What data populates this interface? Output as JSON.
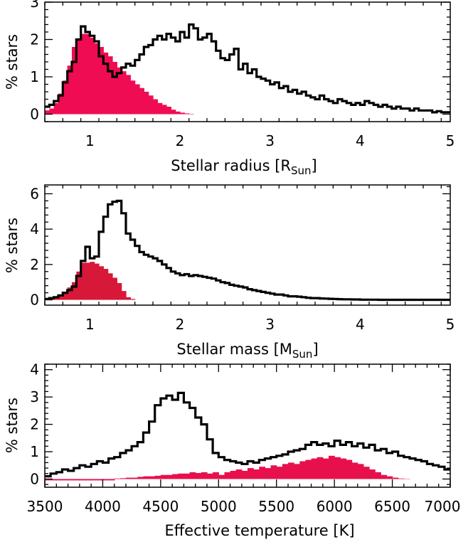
{
  "chart_data": [
    {
      "type": "bar",
      "xlabel": "Stellar radius [R",
      "xlabel_sub": "Sun",
      "xlabel_close": "]",
      "ylabel": "% stars",
      "xlim": [
        0.5,
        5
      ],
      "ylim": [
        -0.2,
        3
      ],
      "xticks": [
        "1",
        "2",
        "3",
        "4",
        "5"
      ],
      "xtick_values": [
        1,
        2,
        3,
        4,
        5
      ],
      "yticks": [
        "0",
        "1",
        "2",
        "3"
      ],
      "ytick_values": [
        0,
        1,
        2,
        3
      ],
      "bin_start": 0.5,
      "bin_width": 0.05,
      "series": [
        {
          "style": "filled",
          "color": "#f00c52",
          "values": [
            0.1,
            0.15,
            0.3,
            0.55,
            0.9,
            1.3,
            1.8,
            2.0,
            2.15,
            2.15,
            2.05,
            1.9,
            1.8,
            1.65,
            1.55,
            1.4,
            1.25,
            1.15,
            1.05,
            0.9,
            0.8,
            0.7,
            0.6,
            0.5,
            0.4,
            0.3,
            0.25,
            0.2,
            0.12,
            0.07,
            0.04,
            0.02,
            0.01,
            0,
            0,
            0,
            0,
            0,
            0,
            0,
            0,
            0,
            0,
            0,
            0,
            0,
            0,
            0,
            0,
            0,
            0,
            0,
            0,
            0,
            0,
            0,
            0,
            0,
            0,
            0,
            0,
            0,
            0,
            0,
            0,
            0,
            0,
            0,
            0,
            0,
            0,
            0,
            0,
            0,
            0,
            0,
            0,
            0,
            0,
            0,
            0,
            0,
            0,
            0,
            0,
            0,
            0,
            0,
            0,
            0
          ]
        },
        {
          "style": "step",
          "color": "#000000",
          "values": [
            0.2,
            0.25,
            0.35,
            0.5,
            0.85,
            1.15,
            1.4,
            2.0,
            2.35,
            2.2,
            2.1,
            1.95,
            1.55,
            1.35,
            1.15,
            1.0,
            1.1,
            1.25,
            1.35,
            1.3,
            1.45,
            1.6,
            1.8,
            1.85,
            2.0,
            2.1,
            2.0,
            2.15,
            2.05,
            1.95,
            2.2,
            2.05,
            2.4,
            2.3,
            2.0,
            2.05,
            2.15,
            1.95,
            1.7,
            1.5,
            1.45,
            1.6,
            1.75,
            1.2,
            1.35,
            1.1,
            1.2,
            1.0,
            0.95,
            0.9,
            0.8,
            0.85,
            0.7,
            0.75,
            0.6,
            0.65,
            0.55,
            0.6,
            0.5,
            0.45,
            0.4,
            0.5,
            0.4,
            0.35,
            0.3,
            0.4,
            0.35,
            0.3,
            0.25,
            0.3,
            0.25,
            0.35,
            0.3,
            0.25,
            0.2,
            0.25,
            0.2,
            0.15,
            0.2,
            0.15,
            0.15,
            0.1,
            0.15,
            0.1,
            0.1,
            0.1,
            0.05,
            0.08,
            0.05,
            0.05
          ]
        }
      ]
    },
    {
      "type": "bar",
      "xlabel": "Stellar mass [M",
      "xlabel_sub": "Sun",
      "xlabel_close": "]",
      "ylabel": "% stars",
      "xlim": [
        0.5,
        5
      ],
      "ylim": [
        -0.3,
        6.5
      ],
      "xticks": [
        "1",
        "2",
        "3",
        "4",
        "5"
      ],
      "xtick_values": [
        1,
        2,
        3,
        4,
        5
      ],
      "yticks": [
        "0",
        "2",
        "4",
        "6"
      ],
      "ytick_values": [
        0,
        2,
        4,
        6
      ],
      "bin_start": 0.5,
      "bin_width": 0.05,
      "series": [
        {
          "style": "filled",
          "color": "#d81838",
          "values": [
            0.05,
            0.1,
            0.15,
            0.3,
            0.45,
            0.7,
            1.0,
            1.6,
            2.1,
            2.1,
            2.15,
            2.05,
            1.9,
            1.75,
            1.5,
            1.25,
            0.95,
            0.5,
            0.15,
            0.05,
            0,
            0,
            0,
            0,
            0,
            0,
            0,
            0,
            0,
            0,
            0,
            0,
            0,
            0,
            0,
            0,
            0,
            0,
            0,
            0,
            0,
            0,
            0,
            0,
            0,
            0,
            0,
            0,
            0,
            0,
            0,
            0,
            0,
            0,
            0,
            0,
            0,
            0,
            0,
            0,
            0,
            0,
            0,
            0,
            0,
            0,
            0,
            0,
            0,
            0,
            0,
            0,
            0,
            0,
            0,
            0,
            0,
            0,
            0,
            0,
            0,
            0,
            0,
            0,
            0,
            0,
            0,
            0,
            0,
            0
          ]
        },
        {
          "style": "step",
          "color": "#000000",
          "values": [
            0.05,
            0.1,
            0.15,
            0.25,
            0.4,
            0.55,
            0.75,
            1.35,
            2.2,
            3.0,
            2.35,
            2.45,
            3.85,
            4.7,
            5.4,
            5.55,
            5.6,
            4.9,
            3.75,
            3.4,
            3.05,
            2.7,
            2.55,
            2.45,
            2.35,
            2.2,
            2.0,
            1.8,
            1.6,
            1.5,
            1.4,
            1.45,
            1.35,
            1.4,
            1.35,
            1.3,
            1.25,
            1.2,
            1.1,
            1.0,
            0.95,
            0.85,
            0.8,
            0.75,
            0.7,
            0.6,
            0.55,
            0.5,
            0.45,
            0.4,
            0.35,
            0.3,
            0.3,
            0.25,
            0.2,
            0.2,
            0.18,
            0.15,
            0.12,
            0.1,
            0.1,
            0.08,
            0.07,
            0.06,
            0.05,
            0.04,
            0.03,
            0.03,
            0.02,
            0.02,
            0.01,
            0.01,
            0.01,
            0.01,
            0,
            0,
            0,
            0,
            0,
            0,
            0,
            0,
            0,
            0,
            0,
            0,
            0,
            0,
            0,
            0
          ]
        }
      ]
    },
    {
      "type": "bar",
      "xlabel": "Effective temperature [K]",
      "xlabel_sub": "",
      "xlabel_close": "",
      "ylabel": "% stars",
      "xlim": [
        3500,
        7000
      ],
      "ylim": [
        -0.3,
        4.2
      ],
      "xticks": [
        "3500",
        "4000",
        "4500",
        "5000",
        "5500",
        "6000",
        "6500",
        "7000"
      ],
      "xtick_values": [
        3500,
        4000,
        4500,
        5000,
        5500,
        6000,
        6500,
        7000
      ],
      "yticks": [
        "0",
        "1",
        "2",
        "3",
        "4"
      ],
      "ytick_values": [
        0,
        1,
        2,
        3,
        4
      ],
      "bin_start": 3500,
      "bin_width": 50,
      "series": [
        {
          "style": "filled",
          "color": "#e8104c",
          "values": [
            -0.05,
            -0.05,
            -0.05,
            -0.05,
            -0.05,
            -0.05,
            -0.05,
            -0.05,
            -0.05,
            -0.05,
            -0.05,
            -0.05,
            0.02,
            0.03,
            0.05,
            0.05,
            0.08,
            0.1,
            0.1,
            0.12,
            0.15,
            0.15,
            0.18,
            0.2,
            0.2,
            0.25,
            0.22,
            0.25,
            0.2,
            0.25,
            0.15,
            0.25,
            0.3,
            0.35,
            0.3,
            0.4,
            0.35,
            0.45,
            0.4,
            0.5,
            0.45,
            0.55,
            0.6,
            0.55,
            0.65,
            0.7,
            0.75,
            0.8,
            0.75,
            0.85,
            0.8,
            0.75,
            0.7,
            0.6,
            0.55,
            0.45,
            0.35,
            0.25,
            0.15,
            0.1,
            0.05,
            0.02,
            0.01,
            0,
            0,
            0,
            0,
            0,
            0,
            0
          ]
        },
        {
          "style": "step",
          "color": "#000000",
          "values": [
            0.1,
            0.2,
            0.25,
            0.35,
            0.3,
            0.4,
            0.5,
            0.45,
            0.55,
            0.65,
            0.6,
            0.75,
            0.8,
            0.95,
            1.05,
            1.2,
            1.35,
            1.7,
            2.1,
            2.7,
            2.95,
            3.05,
            2.9,
            3.15,
            2.8,
            2.6,
            2.25,
            2.0,
            1.45,
            0.95,
            0.8,
            0.7,
            0.65,
            0.6,
            0.55,
            0.65,
            0.6,
            0.7,
            0.75,
            0.8,
            0.85,
            0.9,
            1.0,
            1.05,
            1.1,
            1.25,
            1.35,
            1.25,
            1.3,
            1.2,
            1.4,
            1.25,
            1.35,
            1.2,
            1.3,
            1.15,
            1.25,
            1.05,
            1.1,
            0.95,
            1.0,
            0.85,
            0.8,
            0.75,
            0.7,
            0.65,
            0.55,
            0.5,
            0.45,
            0.35
          ]
        }
      ]
    }
  ]
}
